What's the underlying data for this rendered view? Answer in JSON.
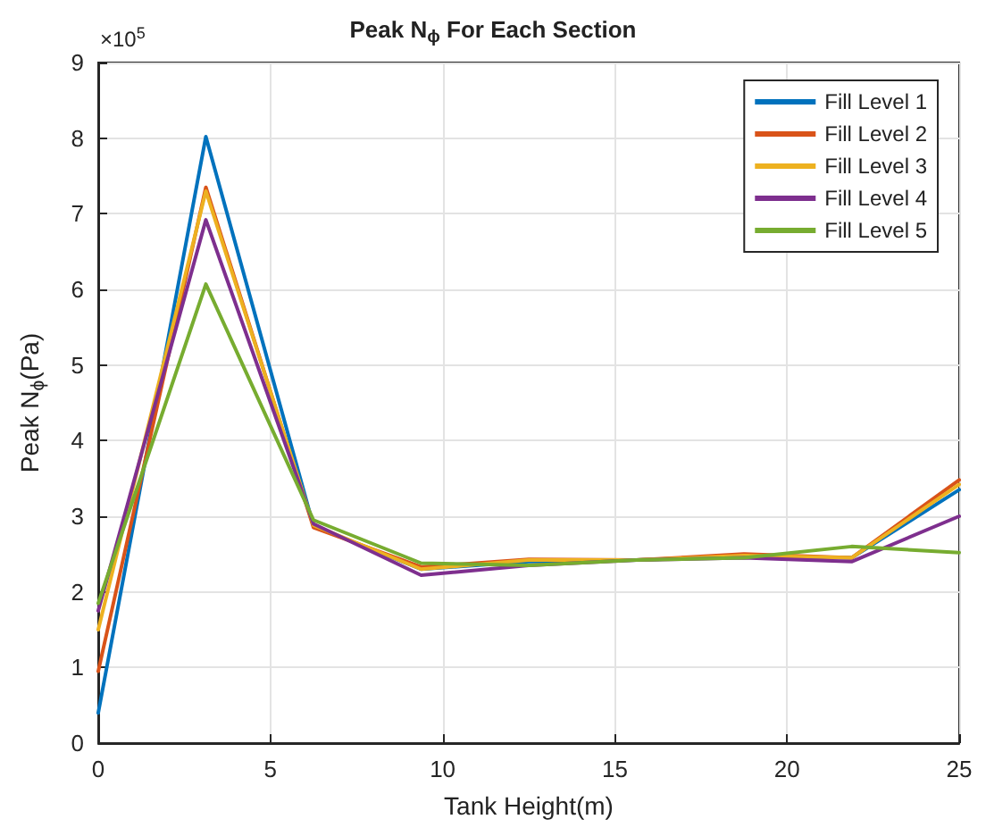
{
  "chart_data": {
    "type": "line",
    "title": "Peak N$_{ϕ}$ For Each Section",
    "xlabel": "Tank Height(m)",
    "ylabel": "Peak N$_{ϕ}$(Pa)",
    "annotations": [
      "×10$^{5}$"
    ],
    "x": [
      0,
      3.125,
      6.25,
      9.375,
      12.5,
      15.625,
      18.75,
      21.875,
      25
    ],
    "series": [
      {
        "name": "Fill Level 1",
        "color": "#0072bd",
        "values": [
          0.4,
          8.02,
          2.87,
          2.3,
          2.4,
          2.42,
          2.47,
          2.45,
          3.35
        ]
      },
      {
        "name": "Fill Level 2",
        "color": "#d95319",
        "values": [
          0.95,
          7.35,
          2.85,
          2.33,
          2.43,
          2.42,
          2.5,
          2.45,
          3.48
        ]
      },
      {
        "name": "Fill Level 3",
        "color": "#edb120",
        "values": [
          1.5,
          7.3,
          2.88,
          2.3,
          2.42,
          2.42,
          2.48,
          2.45,
          3.42
        ]
      },
      {
        "name": "Fill Level 4",
        "color": "#7e2f8e",
        "values": [
          1.75,
          6.92,
          2.9,
          2.22,
          2.35,
          2.42,
          2.45,
          2.4,
          3.0
        ]
      },
      {
        "name": "Fill Level 5",
        "color": "#77ac30",
        "values": [
          1.85,
          6.07,
          2.95,
          2.38,
          2.35,
          2.42,
          2.45,
          2.6,
          2.52
        ]
      }
    ],
    "xlim": [
      0,
      25
    ],
    "xticks": [
      0,
      5,
      10,
      15,
      20,
      25
    ],
    "ylim": [
      0,
      9
    ],
    "yticks": [
      0,
      1,
      2,
      3,
      4,
      5,
      6,
      7,
      8,
      9
    ],
    "grid": true,
    "legend": "top right",
    "marker": "none",
    "line_style": "solid"
  }
}
